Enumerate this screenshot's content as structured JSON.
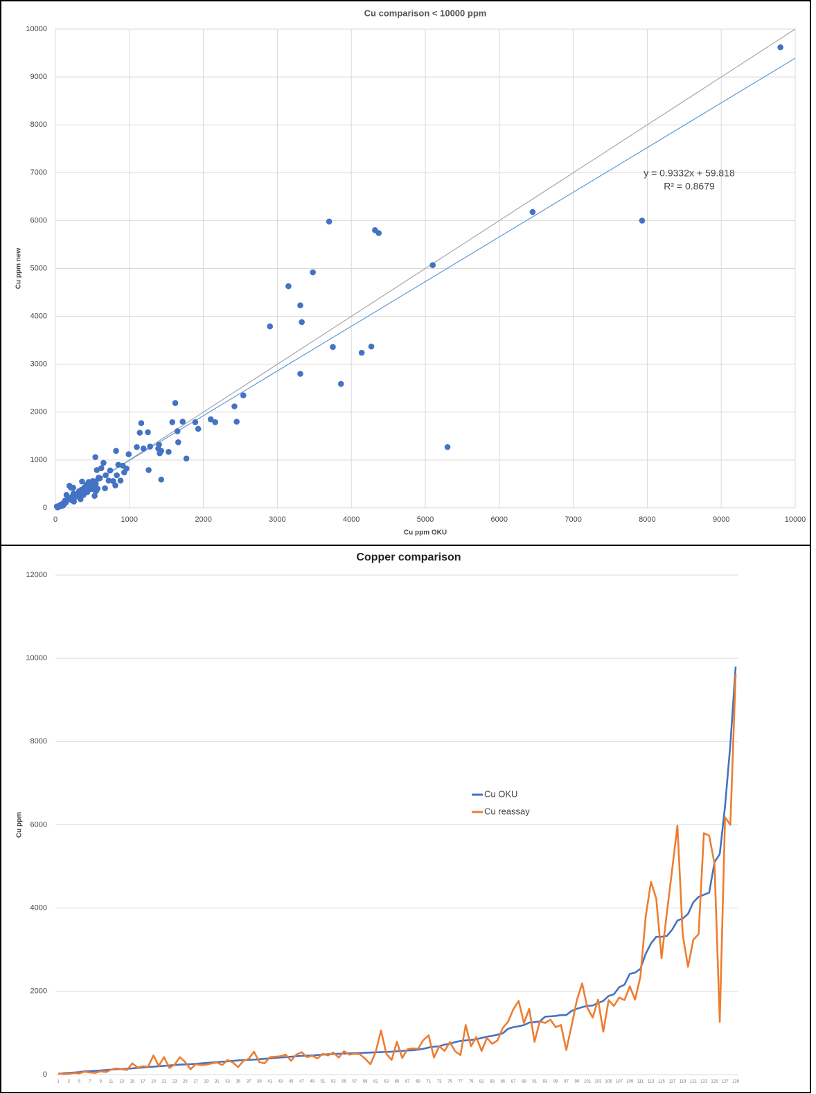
{
  "chart_data": [
    {
      "type": "scatter",
      "title": "Cu comparison < 10000 ppm",
      "x_label": "Cu ppm OKU",
      "y_label": "Cu ppm new",
      "color": "#4472c4",
      "grid": true,
      "xlim": [
        0,
        10000
      ],
      "ylim": [
        0,
        10000
      ],
      "xticks": [
        0,
        1000,
        2000,
        3000,
        4000,
        5000,
        6000,
        7000,
        8000,
        9000,
        10000
      ],
      "yticks": [
        0,
        1000,
        2000,
        3000,
        4000,
        5000,
        6000,
        7000,
        8000,
        9000,
        10000
      ],
      "trendline": {
        "slope": 0.9332,
        "intercept": 59.818,
        "color": "#5b9bd5",
        "label": "y = 0.9332x + 59.818",
        "r2_label": "R² = 0.8679"
      },
      "x": [
        20,
        30,
        40,
        50,
        60,
        80,
        85,
        90,
        100,
        110,
        120,
        130,
        135,
        140,
        150,
        160,
        170,
        180,
        190,
        200,
        210,
        220,
        230,
        240,
        245,
        250,
        260,
        270,
        280,
        290,
        300,
        310,
        320,
        330,
        340,
        350,
        355,
        360,
        370,
        380,
        390,
        400,
        410,
        420,
        430,
        440,
        450,
        455,
        460,
        470,
        480,
        490,
        495,
        500,
        505,
        510,
        515,
        520,
        525,
        530,
        535,
        540,
        545,
        550,
        560,
        570,
        580,
        585,
        600,
        620,
        650,
        670,
        680,
        720,
        740,
        780,
        810,
        820,
        830,
        850,
        880,
        910,
        930,
        960,
        990,
        1100,
        1140,
        1160,
        1190,
        1250,
        1260,
        1280,
        1390,
        1400,
        1410,
        1430,
        1430,
        1530,
        1580,
        1620,
        1650,
        1660,
        1720,
        1770,
        1890,
        1930,
        2100,
        2160,
        2420,
        2450,
        2540,
        2900,
        3150,
        3310,
        3310,
        3330,
        3480,
        3700,
        3750,
        3860,
        4140,
        4270,
        4320,
        4370,
        5100,
        5300,
        6450,
        7930,
        9800
      ],
      "values": [
        30,
        10,
        20,
        40,
        30,
        70,
        50,
        40,
        80,
        60,
        120,
        150,
        130,
        110,
        270,
        170,
        200,
        190,
        460,
        210,
        420,
        160,
        240,
        420,
        300,
        130,
        250,
        230,
        240,
        270,
        290,
        230,
        350,
        290,
        180,
        330,
        380,
        550,
        300,
        270,
        420,
        430,
        440,
        480,
        330,
        480,
        540,
        420,
        450,
        390,
        500,
        460,
        530,
        410,
        560,
        480,
        500,
        490,
        380,
        250,
        550,
        1060,
        500,
        350,
        790,
        400,
        610,
        630,
        620,
        830,
        940,
        410,
        680,
        570,
        780,
        560,
        470,
        1190,
        680,
        900,
        570,
        880,
        740,
        820,
        1120,
        1270,
        1570,
        1770,
        1240,
        1580,
        790,
        1280,
        1240,
        1320,
        1140,
        1190,
        590,
        1170,
        1790,
        2190,
        1600,
        1370,
        1800,
        1030,
        1790,
        1650,
        1850,
        1790,
        2120,
        1800,
        2350,
        3790,
        4630,
        4230,
        2800,
        3880,
        4920,
        5980,
        3360,
        2590,
        3240,
        3370,
        5800,
        5740,
        5070,
        1270,
        6180,
        6000,
        9620
      ]
    },
    {
      "type": "line",
      "title": "Copper comparison",
      "y_label": "Cu ppm",
      "grid": true,
      "legend": "center",
      "ylim": [
        0,
        12000
      ],
      "yticks": [
        0,
        2000,
        4000,
        6000,
        8000,
        10000,
        12000
      ],
      "categories": [
        1,
        null,
        3,
        null,
        5,
        null,
        7,
        null,
        9,
        null,
        11,
        null,
        13,
        null,
        15,
        null,
        17,
        null,
        19,
        null,
        21,
        null,
        23,
        null,
        25,
        null,
        27,
        null,
        29,
        null,
        31,
        null,
        33,
        null,
        35,
        null,
        37,
        null,
        39,
        null,
        41,
        null,
        43,
        null,
        45,
        null,
        47,
        null,
        49,
        null,
        51,
        null,
        53,
        null,
        55,
        null,
        57,
        null,
        59,
        null,
        61,
        null,
        63,
        null,
        65,
        null,
        67,
        null,
        69,
        null,
        71,
        null,
        73,
        null,
        75,
        null,
        77,
        null,
        79,
        null,
        81,
        null,
        83,
        null,
        85,
        null,
        87,
        null,
        89,
        null,
        91,
        null,
        93,
        null,
        95,
        null,
        97,
        null,
        99,
        null,
        101,
        null,
        103,
        null,
        105,
        null,
        107,
        null,
        109,
        null,
        111,
        null,
        113,
        null,
        115,
        null,
        117,
        null,
        119,
        null,
        121,
        null,
        123,
        null,
        125,
        null,
        127,
        null,
        129
      ],
      "series": [
        {
          "name": "Cu OKU",
          "color": "#4472c4",
          "values": [
            20,
            30,
            40,
            50,
            60,
            80,
            85,
            90,
            100,
            110,
            120,
            130,
            135,
            140,
            150,
            160,
            170,
            180,
            190,
            200,
            210,
            220,
            230,
            240,
            245,
            250,
            260,
            270,
            280,
            290,
            300,
            310,
            320,
            330,
            340,
            350,
            355,
            360,
            370,
            380,
            390,
            400,
            410,
            420,
            430,
            440,
            450,
            455,
            460,
            470,
            480,
            490,
            495,
            500,
            505,
            510,
            515,
            520,
            525,
            530,
            535,
            540,
            545,
            550,
            560,
            570,
            580,
            585,
            600,
            620,
            650,
            670,
            680,
            720,
            740,
            780,
            810,
            820,
            830,
            850,
            880,
            910,
            930,
            960,
            990,
            1100,
            1140,
            1160,
            1190,
            1250,
            1260,
            1280,
            1390,
            1400,
            1410,
            1430,
            1430,
            1530,
            1580,
            1620,
            1650,
            1660,
            1720,
            1770,
            1890,
            1930,
            2100,
            2160,
            2420,
            2450,
            2540,
            2900,
            3150,
            3310,
            3310,
            3330,
            3480,
            3700,
            3750,
            3860,
            4140,
            4270,
            4320,
            4370,
            5100,
            5300,
            6450,
            7930,
            9800
          ]
        },
        {
          "name": "Cu reassay",
          "color": "#ed7d31",
          "values": [
            30,
            10,
            20,
            40,
            30,
            70,
            50,
            40,
            80,
            60,
            120,
            150,
            130,
            110,
            270,
            170,
            200,
            190,
            460,
            210,
            420,
            160,
            240,
            420,
            300,
            130,
            250,
            230,
            240,
            270,
            290,
            230,
            350,
            290,
            180,
            330,
            380,
            550,
            300,
            270,
            420,
            430,
            440,
            480,
            330,
            480,
            540,
            420,
            450,
            390,
            500,
            460,
            530,
            410,
            560,
            480,
            500,
            490,
            380,
            250,
            550,
            1060,
            500,
            350,
            790,
            400,
            610,
            630,
            620,
            830,
            940,
            410,
            680,
            570,
            780,
            560,
            470,
            1190,
            680,
            900,
            570,
            880,
            740,
            820,
            1120,
            1270,
            1570,
            1770,
            1240,
            1580,
            790,
            1280,
            1240,
            1320,
            1140,
            1190,
            590,
            1170,
            1790,
            2190,
            1600,
            1370,
            1800,
            1030,
            1790,
            1650,
            1850,
            1790,
            2120,
            1800,
            2350,
            3790,
            4630,
            4230,
            2800,
            3880,
            4920,
            5980,
            3360,
            2590,
            3240,
            3370,
            5800,
            5740,
            5070,
            1270,
            6180,
            6000,
            9620
          ]
        }
      ]
    }
  ]
}
